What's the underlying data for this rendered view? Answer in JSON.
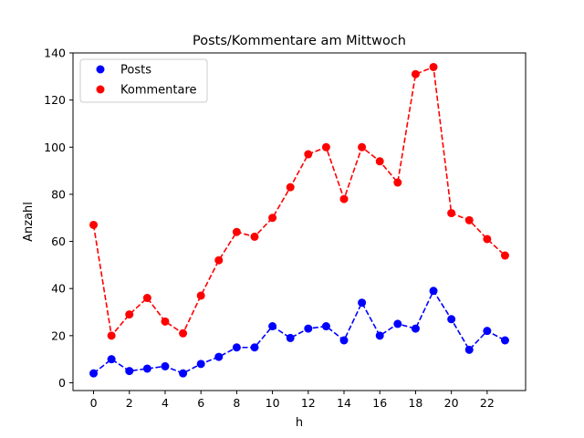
{
  "chart_data": {
    "type": "line",
    "title": "Posts/Kommentare am Mittwoch",
    "xlabel": "h",
    "ylabel": "Anzahl",
    "x": [
      0,
      1,
      2,
      3,
      4,
      5,
      6,
      7,
      8,
      9,
      10,
      11,
      12,
      13,
      14,
      15,
      16,
      17,
      18,
      19,
      20,
      21,
      22,
      23
    ],
    "xlim": [
      -1.15,
      24.15
    ],
    "ylim": [
      -3.3,
      140
    ],
    "xticks": [
      0,
      2,
      4,
      6,
      8,
      10,
      12,
      14,
      16,
      18,
      20,
      22
    ],
    "yticks": [
      0,
      20,
      40,
      60,
      80,
      100,
      120,
      140
    ],
    "grid": false,
    "legend_position": "top-left",
    "series": [
      {
        "name": "Posts",
        "color": "#0000ff",
        "values": [
          4,
          10,
          5,
          6,
          7,
          4,
          8,
          11,
          15,
          15,
          24,
          19,
          23,
          24,
          18,
          34,
          20,
          25,
          23,
          39,
          27,
          14,
          22,
          18
        ]
      },
      {
        "name": "Kommentare",
        "color": "#ff0000",
        "values": [
          67,
          20,
          29,
          36,
          26,
          21,
          37,
          52,
          64,
          62,
          70,
          83,
          97,
          100,
          78,
          100,
          94,
          85,
          131,
          134,
          72,
          69,
          61,
          54
        ]
      }
    ]
  }
}
